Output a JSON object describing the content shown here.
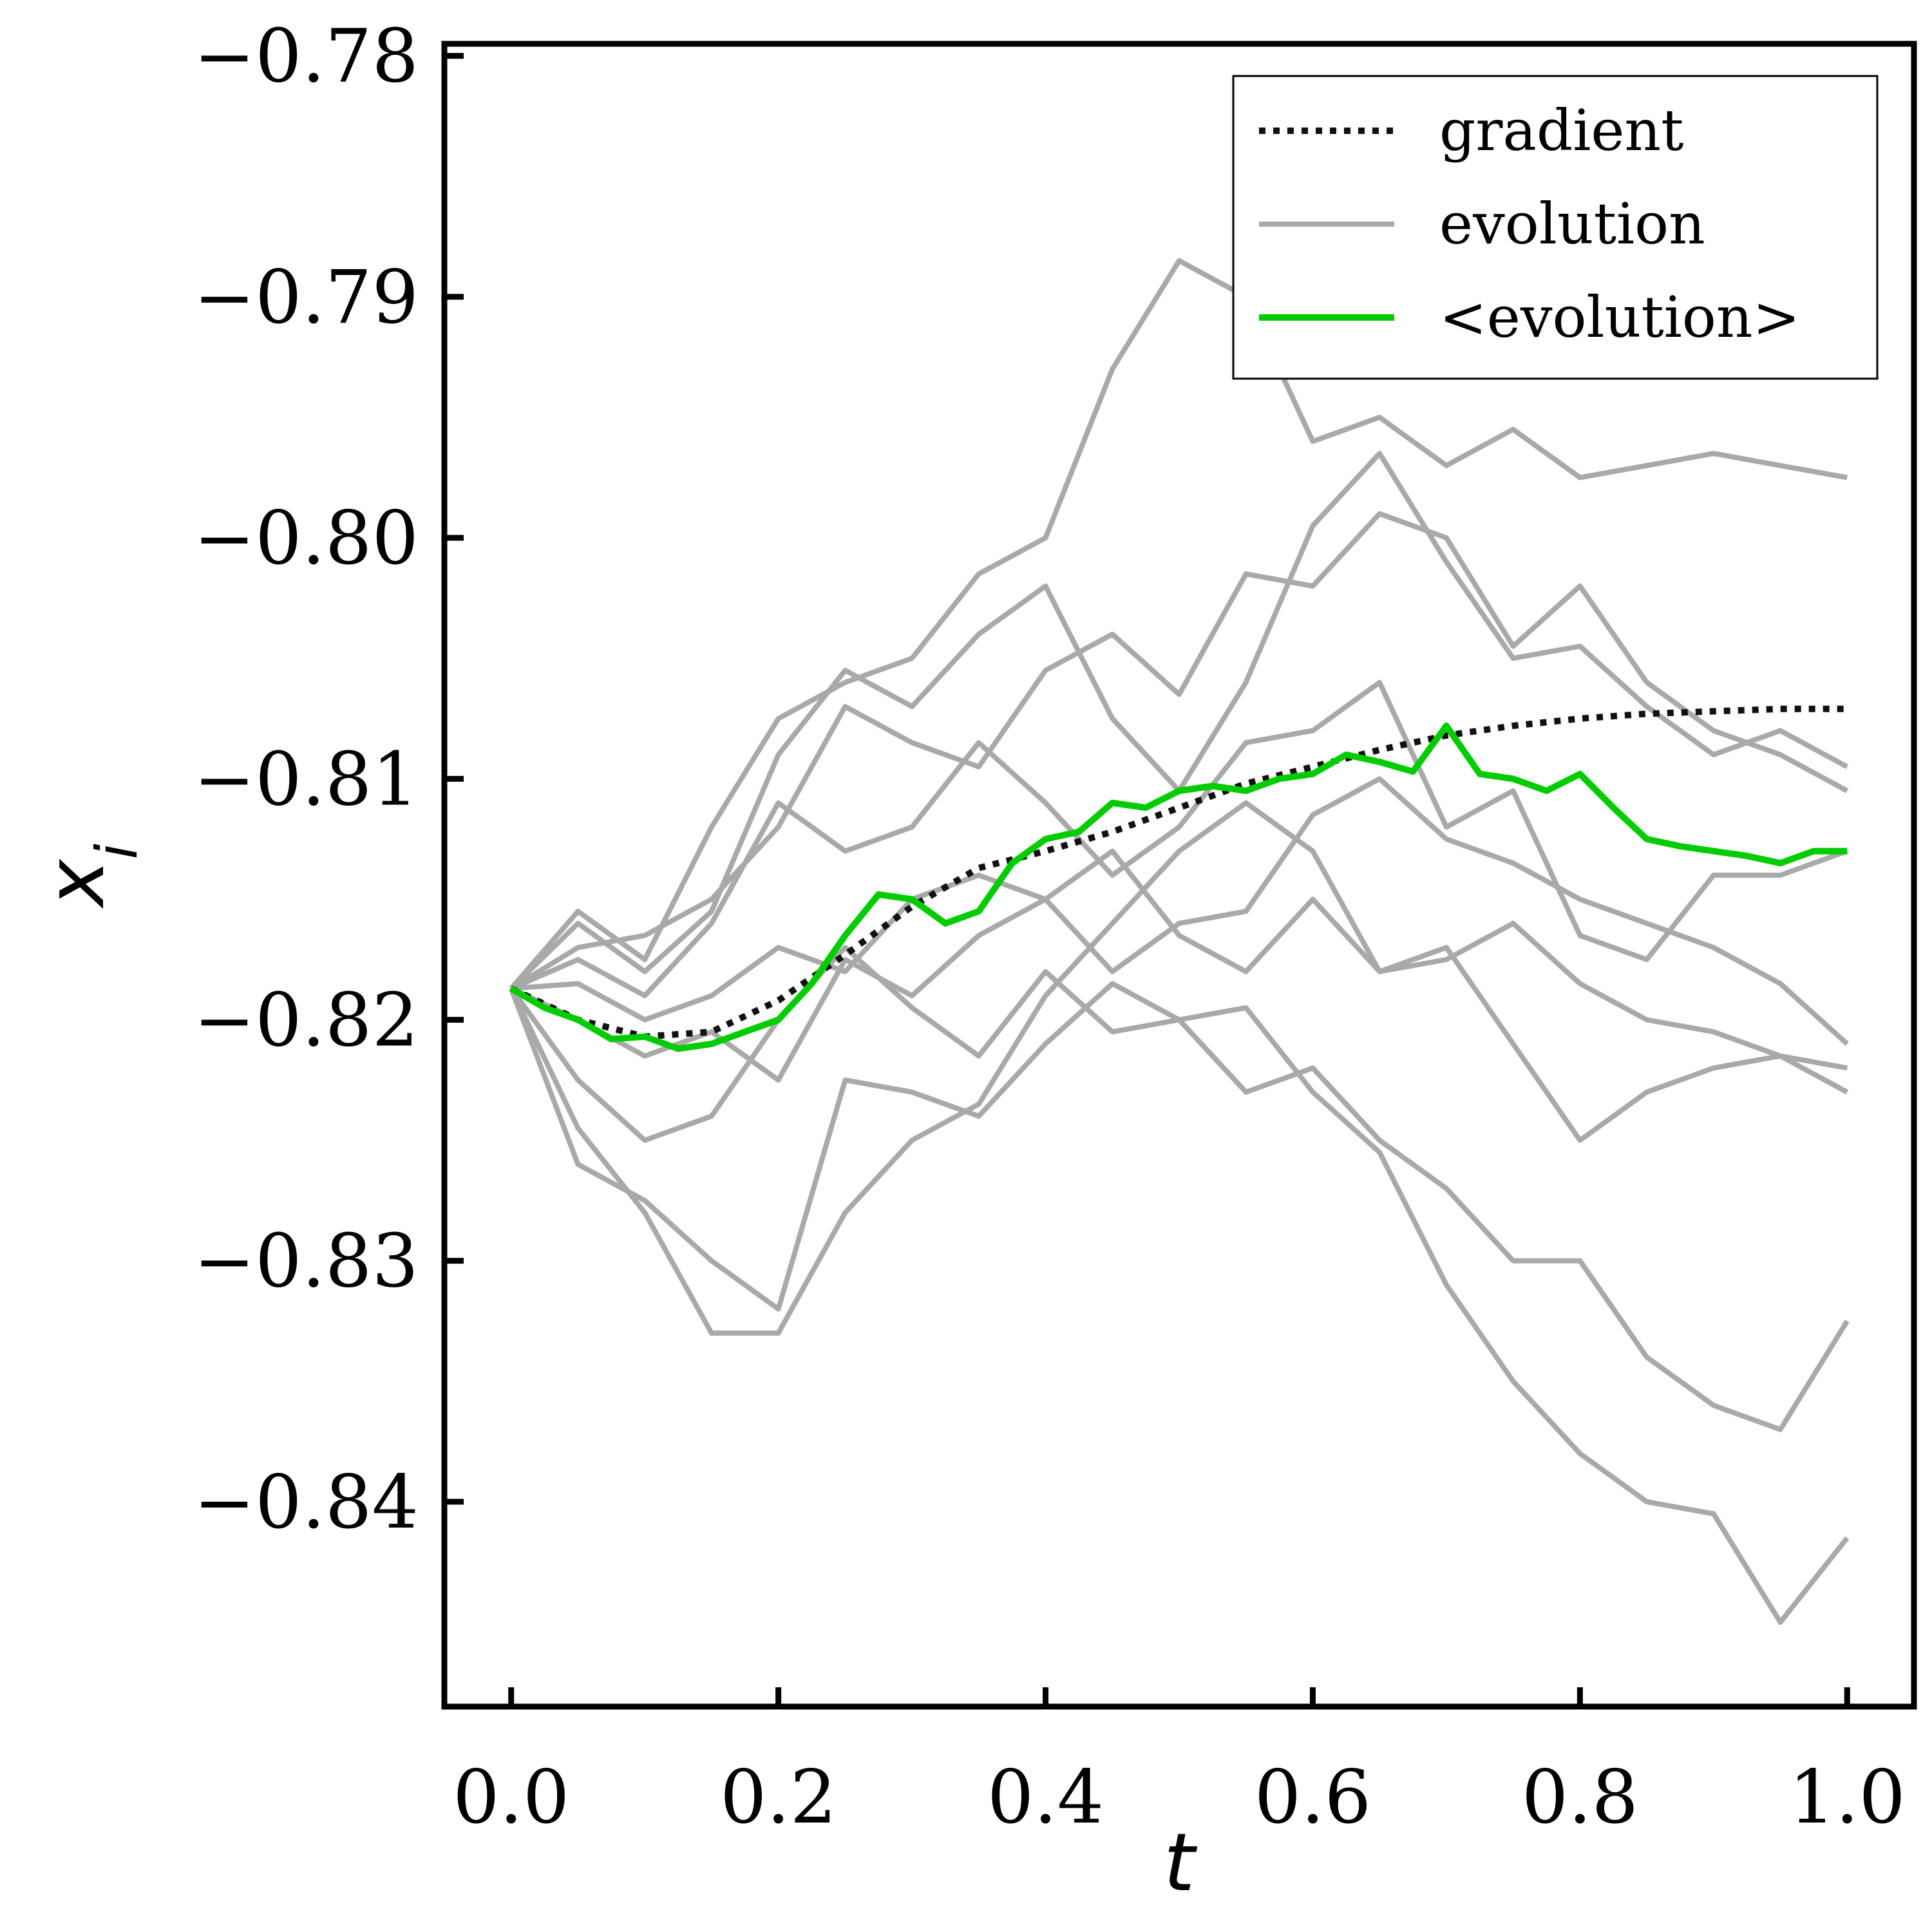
{
  "chart_data": {
    "type": "line",
    "xlabel": "t",
    "ylabel": "x_i",
    "xlim": [
      -0.05,
      1.05
    ],
    "ylim": [
      -0.8485,
      -0.7795
    ],
    "x_ticks": [
      0.0,
      0.2,
      0.4,
      0.6,
      0.8,
      1.0
    ],
    "x_tick_labels": [
      "0.0",
      "0.2",
      "0.4",
      "0.6",
      "0.8",
      "1.0"
    ],
    "y_ticks": [
      -0.78,
      -0.79,
      -0.8,
      -0.81,
      -0.82,
      -0.83,
      -0.84
    ],
    "y_tick_labels": [
      "−0.78",
      "−0.79",
      "−0.80",
      "−0.81",
      "−0.82",
      "−0.83",
      "−0.84"
    ],
    "grid": false,
    "legend_position": "top-right",
    "legend": [
      {
        "label": "gradient",
        "style": "dotted",
        "color": "#111111"
      },
      {
        "label": "evolution",
        "style": "solid",
        "color": "#a9a9a9"
      },
      {
        "label": "<evolution>",
        "style": "solid",
        "color": "#00cc00"
      }
    ],
    "colors": {
      "gradient": "#111111",
      "evolution": "#a9a9a9",
      "mean_evolution": "#00cc00"
    },
    "gradient": {
      "x": [
        0.0,
        0.05,
        0.1,
        0.15,
        0.2,
        0.25,
        0.3,
        0.35,
        0.4,
        0.45,
        0.5,
        0.55,
        0.6,
        0.65,
        0.7,
        0.75,
        0.8,
        0.85,
        0.9,
        0.95,
        1.0
      ],
      "y": [
        -0.8187,
        -0.82,
        -0.8207,
        -0.8205,
        -0.8192,
        -0.8173,
        -0.8153,
        -0.8137,
        -0.813,
        -0.8122,
        -0.8112,
        -0.8102,
        -0.8095,
        -0.8088,
        -0.8082,
        -0.8078,
        -0.8075,
        -0.8073,
        -0.8072,
        -0.8071,
        -0.8071
      ]
    },
    "mean_evolution": {
      "x": [
        0.0,
        0.025,
        0.05,
        0.075,
        0.1,
        0.125,
        0.15,
        0.175,
        0.2,
        0.225,
        0.25,
        0.275,
        0.3,
        0.325,
        0.35,
        0.375,
        0.4,
        0.425,
        0.45,
        0.475,
        0.5,
        0.525,
        0.55,
        0.575,
        0.6,
        0.625,
        0.65,
        0.675,
        0.7,
        0.725,
        0.75,
        0.775,
        0.8,
        0.825,
        0.85,
        0.875,
        0.9,
        0.925,
        0.95,
        0.975,
        1.0
      ],
      "y": [
        -0.8187,
        -0.8195,
        -0.82,
        -0.8208,
        -0.8207,
        -0.8212,
        -0.821,
        -0.8205,
        -0.82,
        -0.8185,
        -0.8165,
        -0.8148,
        -0.815,
        -0.816,
        -0.8155,
        -0.8135,
        -0.8125,
        -0.8122,
        -0.811,
        -0.8112,
        -0.8105,
        -0.8103,
        -0.8105,
        -0.81,
        -0.8098,
        -0.809,
        -0.8093,
        -0.8097,
        -0.8078,
        -0.8098,
        -0.81,
        -0.8105,
        -0.8098,
        -0.8112,
        -0.8125,
        -0.8128,
        -0.813,
        -0.8132,
        -0.8135,
        -0.813,
        -0.813
      ]
    },
    "evolution_runs": [
      {
        "x": [
          0.0,
          0.05,
          0.1,
          0.15,
          0.2,
          0.25,
          0.3,
          0.35,
          0.4,
          0.45,
          0.5,
          0.55,
          0.6,
          0.65,
          0.7,
          0.75,
          0.8,
          0.85,
          0.9,
          0.95,
          1.0
        ],
        "y": [
          -0.8187,
          -0.8155,
          -0.8175,
          -0.812,
          -0.8075,
          -0.806,
          -0.805,
          -0.8015,
          -0.8,
          -0.793,
          -0.7885,
          -0.79,
          -0.796,
          -0.795,
          -0.797,
          -0.7955,
          -0.7975,
          -0.797,
          -0.7965,
          -0.797,
          -0.7975
        ]
      },
      {
        "x": [
          0.0,
          0.05,
          0.1,
          0.15,
          0.2,
          0.25,
          0.3,
          0.35,
          0.4,
          0.45,
          0.5,
          0.55,
          0.6,
          0.65,
          0.7,
          0.75,
          0.8,
          0.85,
          0.9,
          0.95,
          1.0
        ],
        "y": [
          -0.8187,
          -0.816,
          -0.818,
          -0.8155,
          -0.809,
          -0.8055,
          -0.807,
          -0.804,
          -0.802,
          -0.8075,
          -0.8105,
          -0.806,
          -0.7995,
          -0.7965,
          -0.801,
          -0.805,
          -0.8045,
          -0.807,
          -0.809,
          -0.808,
          -0.8095
        ]
      },
      {
        "x": [
          0.0,
          0.05,
          0.1,
          0.15,
          0.2,
          0.25,
          0.3,
          0.35,
          0.4,
          0.45,
          0.5,
          0.55,
          0.6,
          0.65,
          0.7,
          0.75,
          0.8,
          0.85,
          0.9,
          0.95,
          1.0
        ],
        "y": [
          -0.8187,
          -0.817,
          -0.8165,
          -0.815,
          -0.812,
          -0.807,
          -0.8085,
          -0.8095,
          -0.8055,
          -0.804,
          -0.8065,
          -0.8015,
          -0.802,
          -0.799,
          -0.8,
          -0.8045,
          -0.802,
          -0.806,
          -0.808,
          -0.809,
          -0.8105
        ]
      },
      {
        "x": [
          0.0,
          0.05,
          0.1,
          0.15,
          0.2,
          0.25,
          0.3,
          0.35,
          0.4,
          0.45,
          0.5,
          0.55,
          0.6,
          0.65,
          0.7,
          0.75,
          0.8,
          0.85,
          0.9,
          0.95,
          1.0
        ],
        "y": [
          -0.8187,
          -0.8175,
          -0.819,
          -0.816,
          -0.811,
          -0.813,
          -0.812,
          -0.8085,
          -0.811,
          -0.814,
          -0.812,
          -0.8085,
          -0.808,
          -0.806,
          -0.812,
          -0.8105,
          -0.8165,
          -0.8175,
          -0.814,
          -0.814,
          -0.813
        ]
      },
      {
        "x": [
          0.0,
          0.05,
          0.1,
          0.15,
          0.2,
          0.25,
          0.3,
          0.35,
          0.4,
          0.45,
          0.5,
          0.55,
          0.6,
          0.65,
          0.7,
          0.75,
          0.8,
          0.85,
          0.9,
          0.95,
          1.0
        ],
        "y": [
          -0.8187,
          -0.8185,
          -0.82,
          -0.819,
          -0.817,
          -0.818,
          -0.815,
          -0.814,
          -0.815,
          -0.818,
          -0.816,
          -0.8155,
          -0.8115,
          -0.81,
          -0.8125,
          -0.8135,
          -0.815,
          -0.816,
          -0.817,
          -0.8185,
          -0.821
        ]
      },
      {
        "x": [
          0.0,
          0.05,
          0.1,
          0.15,
          0.2,
          0.25,
          0.3,
          0.35,
          0.4,
          0.45,
          0.5,
          0.55,
          0.6,
          0.65,
          0.7,
          0.75,
          0.8,
          0.85,
          0.9,
          0.95,
          1.0
        ],
        "y": [
          -0.8187,
          -0.82,
          -0.8215,
          -0.8205,
          -0.8225,
          -0.8175,
          -0.819,
          -0.8165,
          -0.815,
          -0.813,
          -0.8165,
          -0.818,
          -0.815,
          -0.818,
          -0.8175,
          -0.816,
          -0.8185,
          -0.82,
          -0.8205,
          -0.8215,
          -0.823
        ]
      },
      {
        "x": [
          0.0,
          0.05,
          0.1,
          0.15,
          0.2,
          0.25,
          0.3,
          0.35,
          0.4,
          0.45,
          0.5,
          0.55,
          0.6,
          0.65,
          0.7,
          0.75,
          0.8,
          0.85,
          0.9,
          0.95,
          1.0
        ],
        "y": [
          -0.8187,
          -0.8225,
          -0.825,
          -0.824,
          -0.82,
          -0.817,
          -0.8195,
          -0.8215,
          -0.818,
          -0.8205,
          -0.82,
          -0.823,
          -0.822,
          -0.825,
          -0.827,
          -0.83,
          -0.83,
          -0.834,
          -0.836,
          -0.837,
          -0.8325
        ]
      },
      {
        "x": [
          0.0,
          0.05,
          0.1,
          0.15,
          0.2,
          0.25,
          0.3,
          0.35,
          0.4,
          0.45,
          0.5,
          0.55,
          0.6,
          0.65,
          0.7,
          0.75,
          0.8,
          0.85,
          0.9,
          0.95,
          1.0
        ],
        "y": [
          -0.8187,
          -0.826,
          -0.8275,
          -0.83,
          -0.832,
          -0.8225,
          -0.823,
          -0.824,
          -0.821,
          -0.8185,
          -0.82,
          -0.8195,
          -0.823,
          -0.8255,
          -0.831,
          -0.835,
          -0.838,
          -0.84,
          -0.8405,
          -0.845,
          -0.8415
        ]
      },
      {
        "x": [
          0.0,
          0.05,
          0.1,
          0.15,
          0.2,
          0.25,
          0.3,
          0.35,
          0.4,
          0.45,
          0.5,
          0.55,
          0.6,
          0.65,
          0.7,
          0.75,
          0.8,
          0.85,
          0.9,
          0.95,
          1.0
        ],
        "y": [
          -0.8187,
          -0.8245,
          -0.828,
          -0.833,
          -0.833,
          -0.828,
          -0.825,
          -0.8235,
          -0.819,
          -0.816,
          -0.813,
          -0.811,
          -0.813,
          -0.818,
          -0.817,
          -0.821,
          -0.825,
          -0.823,
          -0.822,
          -0.8215,
          -0.822
        ]
      }
    ]
  }
}
